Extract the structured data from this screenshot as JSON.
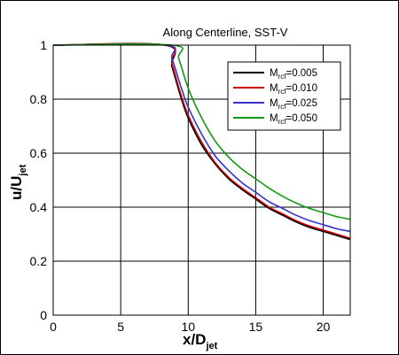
{
  "chart_data": {
    "type": "line",
    "title": "Along Centerline, SST-V",
    "xlabel": {
      "main": "x/D",
      "sub": "jet"
    },
    "ylabel": {
      "main": "u/U",
      "sub": "jet"
    },
    "xlim": [
      0,
      22
    ],
    "ylim": [
      0,
      1
    ],
    "xticks": [
      0,
      5,
      10,
      15,
      20
    ],
    "yticks": [
      0,
      0.2,
      0.4,
      0.6,
      0.8,
      1
    ],
    "yticklabels": [
      "0",
      "0.2",
      "0.4",
      "0.6",
      "0.8",
      "1"
    ],
    "grid": true,
    "legend_position": "top-right",
    "series": [
      {
        "name_main": "M",
        "name_sub": "rcf",
        "name_rest": "=0.005",
        "color": "#000000",
        "x": [
          0,
          8.3,
          8.8,
          9.5,
          10,
          11,
          12,
          13,
          14,
          15,
          16,
          17,
          18,
          19,
          20,
          21,
          22
        ],
        "y": [
          1,
          1,
          0.92,
          0.8,
          0.73,
          0.63,
          0.56,
          0.505,
          0.465,
          0.43,
          0.395,
          0.37,
          0.345,
          0.325,
          0.31,
          0.295,
          0.28
        ]
      },
      {
        "name_main": "M",
        "name_sub": "rcf",
        "name_rest": "=0.010",
        "color": "#cc0000",
        "x": [
          0,
          8.3,
          8.8,
          9.5,
          10,
          11,
          12,
          13,
          14,
          15,
          16,
          17,
          18,
          19,
          20,
          21,
          22
        ],
        "y": [
          1,
          1,
          0.93,
          0.81,
          0.74,
          0.64,
          0.565,
          0.51,
          0.47,
          0.435,
          0.4,
          0.375,
          0.35,
          0.33,
          0.315,
          0.3,
          0.285
        ]
      },
      {
        "name_main": "M",
        "name_sub": "rcf",
        "name_rest": "=0.025",
        "color": "#3333cc",
        "x": [
          0,
          8.3,
          8.8,
          9.5,
          10,
          11,
          12,
          13,
          14,
          15,
          16,
          17,
          18,
          19,
          20,
          21,
          22
        ],
        "y": [
          1,
          1,
          0.95,
          0.84,
          0.77,
          0.67,
          0.59,
          0.535,
          0.49,
          0.455,
          0.42,
          0.395,
          0.37,
          0.35,
          0.335,
          0.32,
          0.31
        ]
      },
      {
        "name_main": "M",
        "name_sub": "rcf",
        "name_rest": "=0.050",
        "color": "#119911",
        "x": [
          0,
          8.8,
          9.3,
          10,
          11,
          12,
          13,
          14,
          15,
          16,
          17,
          18,
          19,
          20,
          21,
          22
        ],
        "y": [
          1,
          1,
          0.95,
          0.84,
          0.73,
          0.645,
          0.585,
          0.54,
          0.505,
          0.47,
          0.44,
          0.415,
          0.395,
          0.38,
          0.365,
          0.355
        ]
      }
    ]
  }
}
